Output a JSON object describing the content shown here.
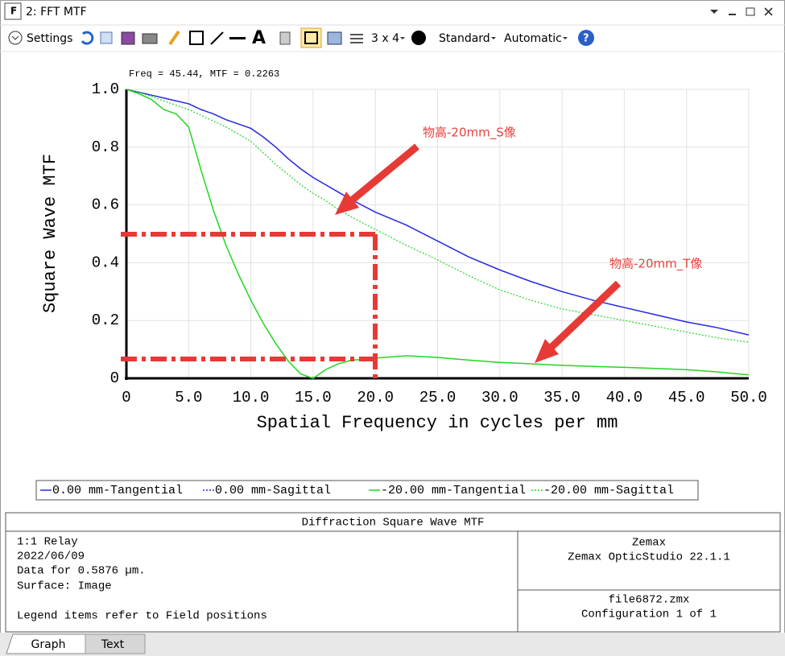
{
  "window": {
    "title": "2: FFT MTF"
  },
  "toolbar": {
    "settings": "Settings",
    "layout": "3 x 4",
    "standard": "Standard",
    "automatic": "Automatic"
  },
  "chart_data": {
    "type": "line",
    "annotations": [
      "Freq = 45.44, MTF = 0.2263",
      "物高-20mm_S像",
      "物高-20mm_T像"
    ],
    "xlabel": "Spatial Frequency in cycles per mm",
    "ylabel": "Square Wave MTF",
    "x": [
      0,
      1,
      2,
      3,
      4,
      5,
      6,
      7,
      8,
      9,
      10,
      11,
      12,
      13,
      14,
      15,
      16,
      17,
      18,
      20,
      22.5,
      25,
      27.5,
      30,
      32.5,
      35,
      37.5,
      40,
      42.5,
      45,
      47.5,
      50
    ],
    "series": [
      {
        "name": "0.00 mm-Tangential",
        "color": "#2a2ae6",
        "dash": false,
        "values": [
          1.0,
          0.99,
          0.98,
          0.97,
          0.96,
          0.95,
          0.93,
          0.915,
          0.895,
          0.88,
          0.865,
          0.835,
          0.8,
          0.76,
          0.725,
          0.695,
          0.67,
          0.645,
          0.62,
          0.575,
          0.53,
          0.475,
          0.42,
          0.375,
          0.335,
          0.3,
          0.27,
          0.245,
          0.22,
          0.195,
          0.175,
          0.15
        ]
      },
      {
        "name": "0.00 mm-Sagittal",
        "color": "#2a2ae6",
        "dash": true,
        "values": [
          1.0,
          0.99,
          0.98,
          0.97,
          0.96,
          0.95,
          0.93,
          0.915,
          0.895,
          0.88,
          0.865,
          0.835,
          0.8,
          0.76,
          0.725,
          0.695,
          0.67,
          0.645,
          0.62,
          0.575,
          0.53,
          0.475,
          0.42,
          0.375,
          0.335,
          0.3,
          0.27,
          0.245,
          0.22,
          0.195,
          0.175,
          0.15
        ]
      },
      {
        "name": "-20.00 mm-Tangential",
        "color": "#22d622",
        "dash": false,
        "values": [
          1.0,
          0.985,
          0.965,
          0.93,
          0.915,
          0.87,
          0.72,
          0.58,
          0.46,
          0.36,
          0.27,
          0.19,
          0.12,
          0.06,
          0.015,
          0.0,
          0.03,
          0.05,
          0.062,
          0.07,
          0.078,
          0.072,
          0.063,
          0.055,
          0.05,
          0.045,
          0.041,
          0.038,
          0.034,
          0.03,
          0.022,
          0.012
        ]
      },
      {
        "name": "-20.00 mm-Sagittal",
        "color": "#22d622",
        "dash": true,
        "values": [
          1.0,
          0.99,
          0.975,
          0.96,
          0.945,
          0.93,
          0.91,
          0.89,
          0.87,
          0.845,
          0.82,
          0.78,
          0.74,
          0.705,
          0.67,
          0.64,
          0.615,
          0.585,
          0.56,
          0.515,
          0.46,
          0.41,
          0.355,
          0.306,
          0.27,
          0.24,
          0.22,
          0.2,
          0.18,
          0.16,
          0.14,
          0.125
        ]
      }
    ],
    "xlim": [
      0,
      50
    ],
    "xticks": [
      0,
      {
        "value": 5,
        "label": "5.0"
      },
      {
        "value": 10,
        "label": "10.0"
      },
      {
        "value": 15,
        "label": "15.0"
      },
      {
        "value": 20,
        "label": "20.0"
      },
      {
        "value": 25,
        "label": "25.0"
      },
      {
        "value": 30,
        "label": "30.0"
      },
      {
        "value": 35,
        "label": "35.0"
      },
      {
        "value": 40,
        "label": "40.0"
      },
      {
        "value": 45,
        "label": "45.0"
      },
      {
        "value": 50,
        "label": "50.0"
      }
    ],
    "ylim": [
      0,
      1
    ],
    "yticks": [
      0,
      {
        "value": 0.2,
        "label": "0.2"
      },
      {
        "value": 0.4,
        "label": "0.4"
      },
      {
        "value": 0.6,
        "label": "0.6"
      },
      {
        "value": 0.8,
        "label": "0.8"
      },
      {
        "value": 1,
        "label": "1.0"
      }
    ],
    "grid": true
  },
  "info": {
    "title": "Diffraction Square Wave MTF",
    "left": [
      "1:1 Relay",
      "2022/06/09",
      "Data for 0.5876 µm.",
      "Surface: Image",
      "Legend items refer to Field positions"
    ],
    "right_top": [
      "Zemax",
      "Zemax OpticStudio 22.1.1"
    ],
    "right_bottom": [
      "file6872.zmx",
      "Configuration 1 of 1"
    ]
  },
  "tabs": [
    "Graph",
    "Text"
  ]
}
